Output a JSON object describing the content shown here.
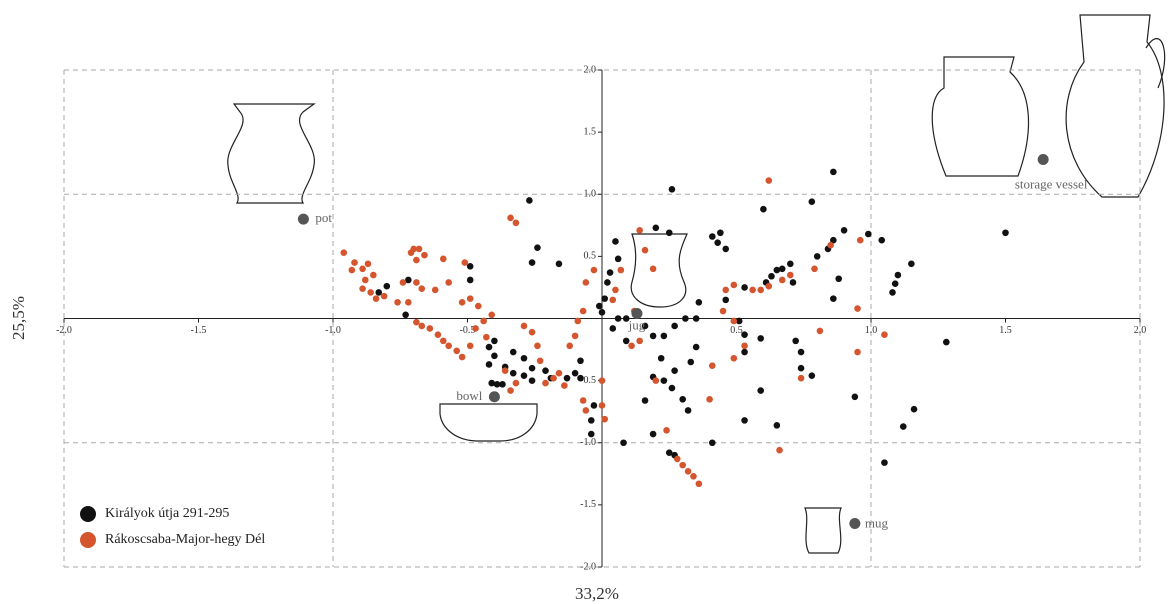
{
  "chart_data": {
    "type": "scatter",
    "xlabel": "33,2%",
    "ylabel": "25,5%",
    "xlim": [
      -2,
      2
    ],
    "ylim": [
      -2,
      2
    ],
    "xticks": [
      {
        "value": -2,
        "label": "-2.0"
      },
      -1.5,
      {
        "value": -1,
        "label": "-1.0"
      },
      -0.5,
      0.5,
      {
        "value": 1,
        "label": "1.0"
      },
      1.5,
      {
        "value": 2,
        "label": "2.0"
      }
    ],
    "yticks": [
      {
        "value": 2,
        "label": "2.0"
      },
      1.5,
      {
        "value": 1,
        "label": "1.0"
      },
      0.5,
      -0.5,
      {
        "value": -1,
        "label": "-1.0"
      },
      -1.5,
      {
        "value": -2,
        "label": "-2.0"
      }
    ],
    "grid": true,
    "legend": "lower left",
    "series": [
      {
        "name": "Királyok útja 291-295",
        "color": "#111111",
        "x": [
          -0.27,
          0.26,
          0.6,
          0.78,
          0.86,
          1.5,
          0.99,
          1.04,
          0.9,
          0.86,
          0.84,
          0.8,
          1.15,
          1.1,
          1.09,
          1.08,
          0.7,
          0.67,
          0.65,
          0.63,
          0.61,
          0.53,
          0.46,
          0.43,
          0.41,
          0.44,
          0.2,
          0.25,
          0.05,
          0.06,
          0.03,
          0.01,
          -0.01,
          0,
          -0.24,
          -0.26,
          -0.16,
          -0.49,
          -0.49,
          -0.72,
          -0.8,
          -0.83,
          -0.73,
          0.36,
          0.46,
          0.35,
          0.31,
          0.27,
          0.23,
          0.19,
          0.16,
          0.06,
          0.04,
          0.09,
          0.22,
          0.27,
          0.35,
          0.33,
          0.23,
          0.26,
          0.32,
          0.3,
          0.19,
          0.16,
          0.19,
          0.25,
          0.27,
          0.41,
          0.08,
          -0.04,
          -0.04,
          -0.03,
          -0.08,
          -0.1,
          -0.08,
          -0.13,
          -0.19,
          -0.21,
          -0.26,
          -0.29,
          -0.33,
          -0.36,
          -0.4,
          -0.42,
          -0.41,
          -0.39,
          -0.37,
          -0.42,
          -0.4,
          -0.29,
          -0.26,
          -0.33,
          0.53,
          0.59,
          0.53,
          0.59,
          0.53,
          0.65,
          0.72,
          0.74,
          0.74,
          0.78,
          0.94,
          1.12,
          1.16,
          1.05,
          1.28,
          0.88,
          0.86,
          0.71,
          0.51,
          0.09,
          0.02
        ],
        "values": [
          0.95,
          1.04,
          0.88,
          0.94,
          1.18,
          0.69,
          0.68,
          0.63,
          0.71,
          0.63,
          0.56,
          0.5,
          0.44,
          0.35,
          0.28,
          0.21,
          0.44,
          0.4,
          0.39,
          0.34,
          0.29,
          0.25,
          0.56,
          0.61,
          0.66,
          0.69,
          0.73,
          0.69,
          0.62,
          0.48,
          0.37,
          0.16,
          0.1,
          0.05,
          0.57,
          0.45,
          0.44,
          0.42,
          0.31,
          0.31,
          0.26,
          0.21,
          0.03,
          0.13,
          0.15,
          0,
          0,
          -0.06,
          -0.14,
          -0.14,
          -0.06,
          0,
          -0.08,
          -0.18,
          -0.32,
          -0.42,
          -0.23,
          -0.35,
          -0.5,
          -0.56,
          -0.74,
          -0.65,
          -0.47,
          -0.66,
          -0.93,
          -1.08,
          -1.1,
          -1.0,
          -1.0,
          -0.93,
          -0.82,
          -0.7,
          -0.48,
          -0.44,
          -0.34,
          -0.48,
          -0.48,
          -0.42,
          -0.4,
          -0.32,
          -0.27,
          -0.39,
          -0.3,
          -0.37,
          -0.52,
          -0.53,
          -0.53,
          -0.23,
          -0.18,
          -0.46,
          -0.5,
          -0.44,
          -0.13,
          -0.16,
          -0.27,
          -0.58,
          -0.82,
          -0.86,
          -0.18,
          -0.27,
          -0.4,
          -0.46,
          -0.63,
          -0.87,
          -0.73,
          -1.16,
          -0.19,
          0.32,
          0.16,
          0.29,
          -0.02,
          0,
          0.29
        ]
      },
      {
        "name": "Rákoscsaba-Major-hegy Dél",
        "color": "#d4552e",
        "x": [
          0.62,
          -0.34,
          -0.32,
          -0.96,
          -0.92,
          -0.93,
          -0.89,
          -0.87,
          -0.85,
          -0.88,
          -0.89,
          -0.86,
          -0.84,
          -0.81,
          -0.76,
          -0.72,
          -0.7,
          -0.71,
          -0.68,
          -0.69,
          -0.66,
          -0.74,
          -0.69,
          -0.67,
          -0.59,
          -0.62,
          -0.57,
          -0.51,
          -0.52,
          -0.49,
          -0.46,
          -0.41,
          -0.69,
          -0.67,
          -0.64,
          -0.61,
          -0.59,
          -0.57,
          -0.54,
          -0.52,
          -0.49,
          -0.47,
          -0.44,
          -0.43,
          -0.36,
          -0.34,
          -0.32,
          -0.29,
          -0.26,
          -0.24,
          -0.23,
          -0.21,
          -0.18,
          -0.16,
          -0.14,
          -0.12,
          -0.1,
          -0.09,
          -0.07,
          -0.06,
          -0.03,
          -0.07,
          -0.06,
          0,
          0.01,
          0,
          0.05,
          0.04,
          0.07,
          0.14,
          0.16,
          0.19,
          0.12,
          0.14,
          0.11,
          0.2,
          0.24,
          0.28,
          0.3,
          0.32,
          0.34,
          0.36,
          0.4,
          0.41,
          0.49,
          0.53,
          0.45,
          0.46,
          0.49,
          0.56,
          0.59,
          0.62,
          0.67,
          0.7,
          0.79,
          0.85,
          0.96,
          1.05,
          0.95,
          0.95,
          0.81,
          0.74,
          0.66,
          0.49
        ],
        "values": [
          1.11,
          0.81,
          0.77,
          0.53,
          0.45,
          0.39,
          0.4,
          0.44,
          0.35,
          0.31,
          0.24,
          0.21,
          0.16,
          0.18,
          0.13,
          0.13,
          0.56,
          0.53,
          0.56,
          0.47,
          0.51,
          0.29,
          0.29,
          0.24,
          0.48,
          0.23,
          0.29,
          0.45,
          0.13,
          0.16,
          0.1,
          0.03,
          -0.03,
          -0.06,
          -0.08,
          -0.13,
          -0.18,
          -0.22,
          -0.26,
          -0.31,
          -0.22,
          -0.08,
          -0.02,
          -0.15,
          -0.42,
          -0.58,
          -0.52,
          -0.06,
          -0.11,
          -0.22,
          -0.34,
          -0.52,
          -0.48,
          -0.44,
          -0.54,
          -0.22,
          -0.14,
          -0.02,
          0.06,
          0.29,
          0.39,
          -0.66,
          -0.74,
          -0.7,
          -0.81,
          -0.5,
          0.23,
          0.15,
          0.39,
          0.71,
          0.55,
          0.4,
          0.06,
          -0.18,
          -0.22,
          -0.5,
          -0.9,
          -1.13,
          -1.18,
          -1.23,
          -1.27,
          -1.33,
          -0.65,
          -0.38,
          -0.32,
          -0.22,
          0.06,
          0.23,
          0.27,
          0.23,
          0.23,
          0.26,
          0.31,
          0.35,
          0.4,
          0.59,
          0.63,
          -0.13,
          -0.27,
          0.08,
          -0.1,
          -0.48,
          -1.06,
          -0.02
        ]
      }
    ],
    "annotations": [
      {
        "label": "pot",
        "x": -1.11,
        "y": 0.8
      },
      {
        "label": "bowl",
        "x": -0.4,
        "y": -0.63
      },
      {
        "label": "jug",
        "x": 0.13,
        "y": 0.04
      },
      {
        "label": "mug",
        "x": 0.94,
        "y": -1.65
      },
      {
        "label": "storage vessel",
        "x": 1.64,
        "y": 1.28
      }
    ],
    "annotation_color": "#555555"
  }
}
